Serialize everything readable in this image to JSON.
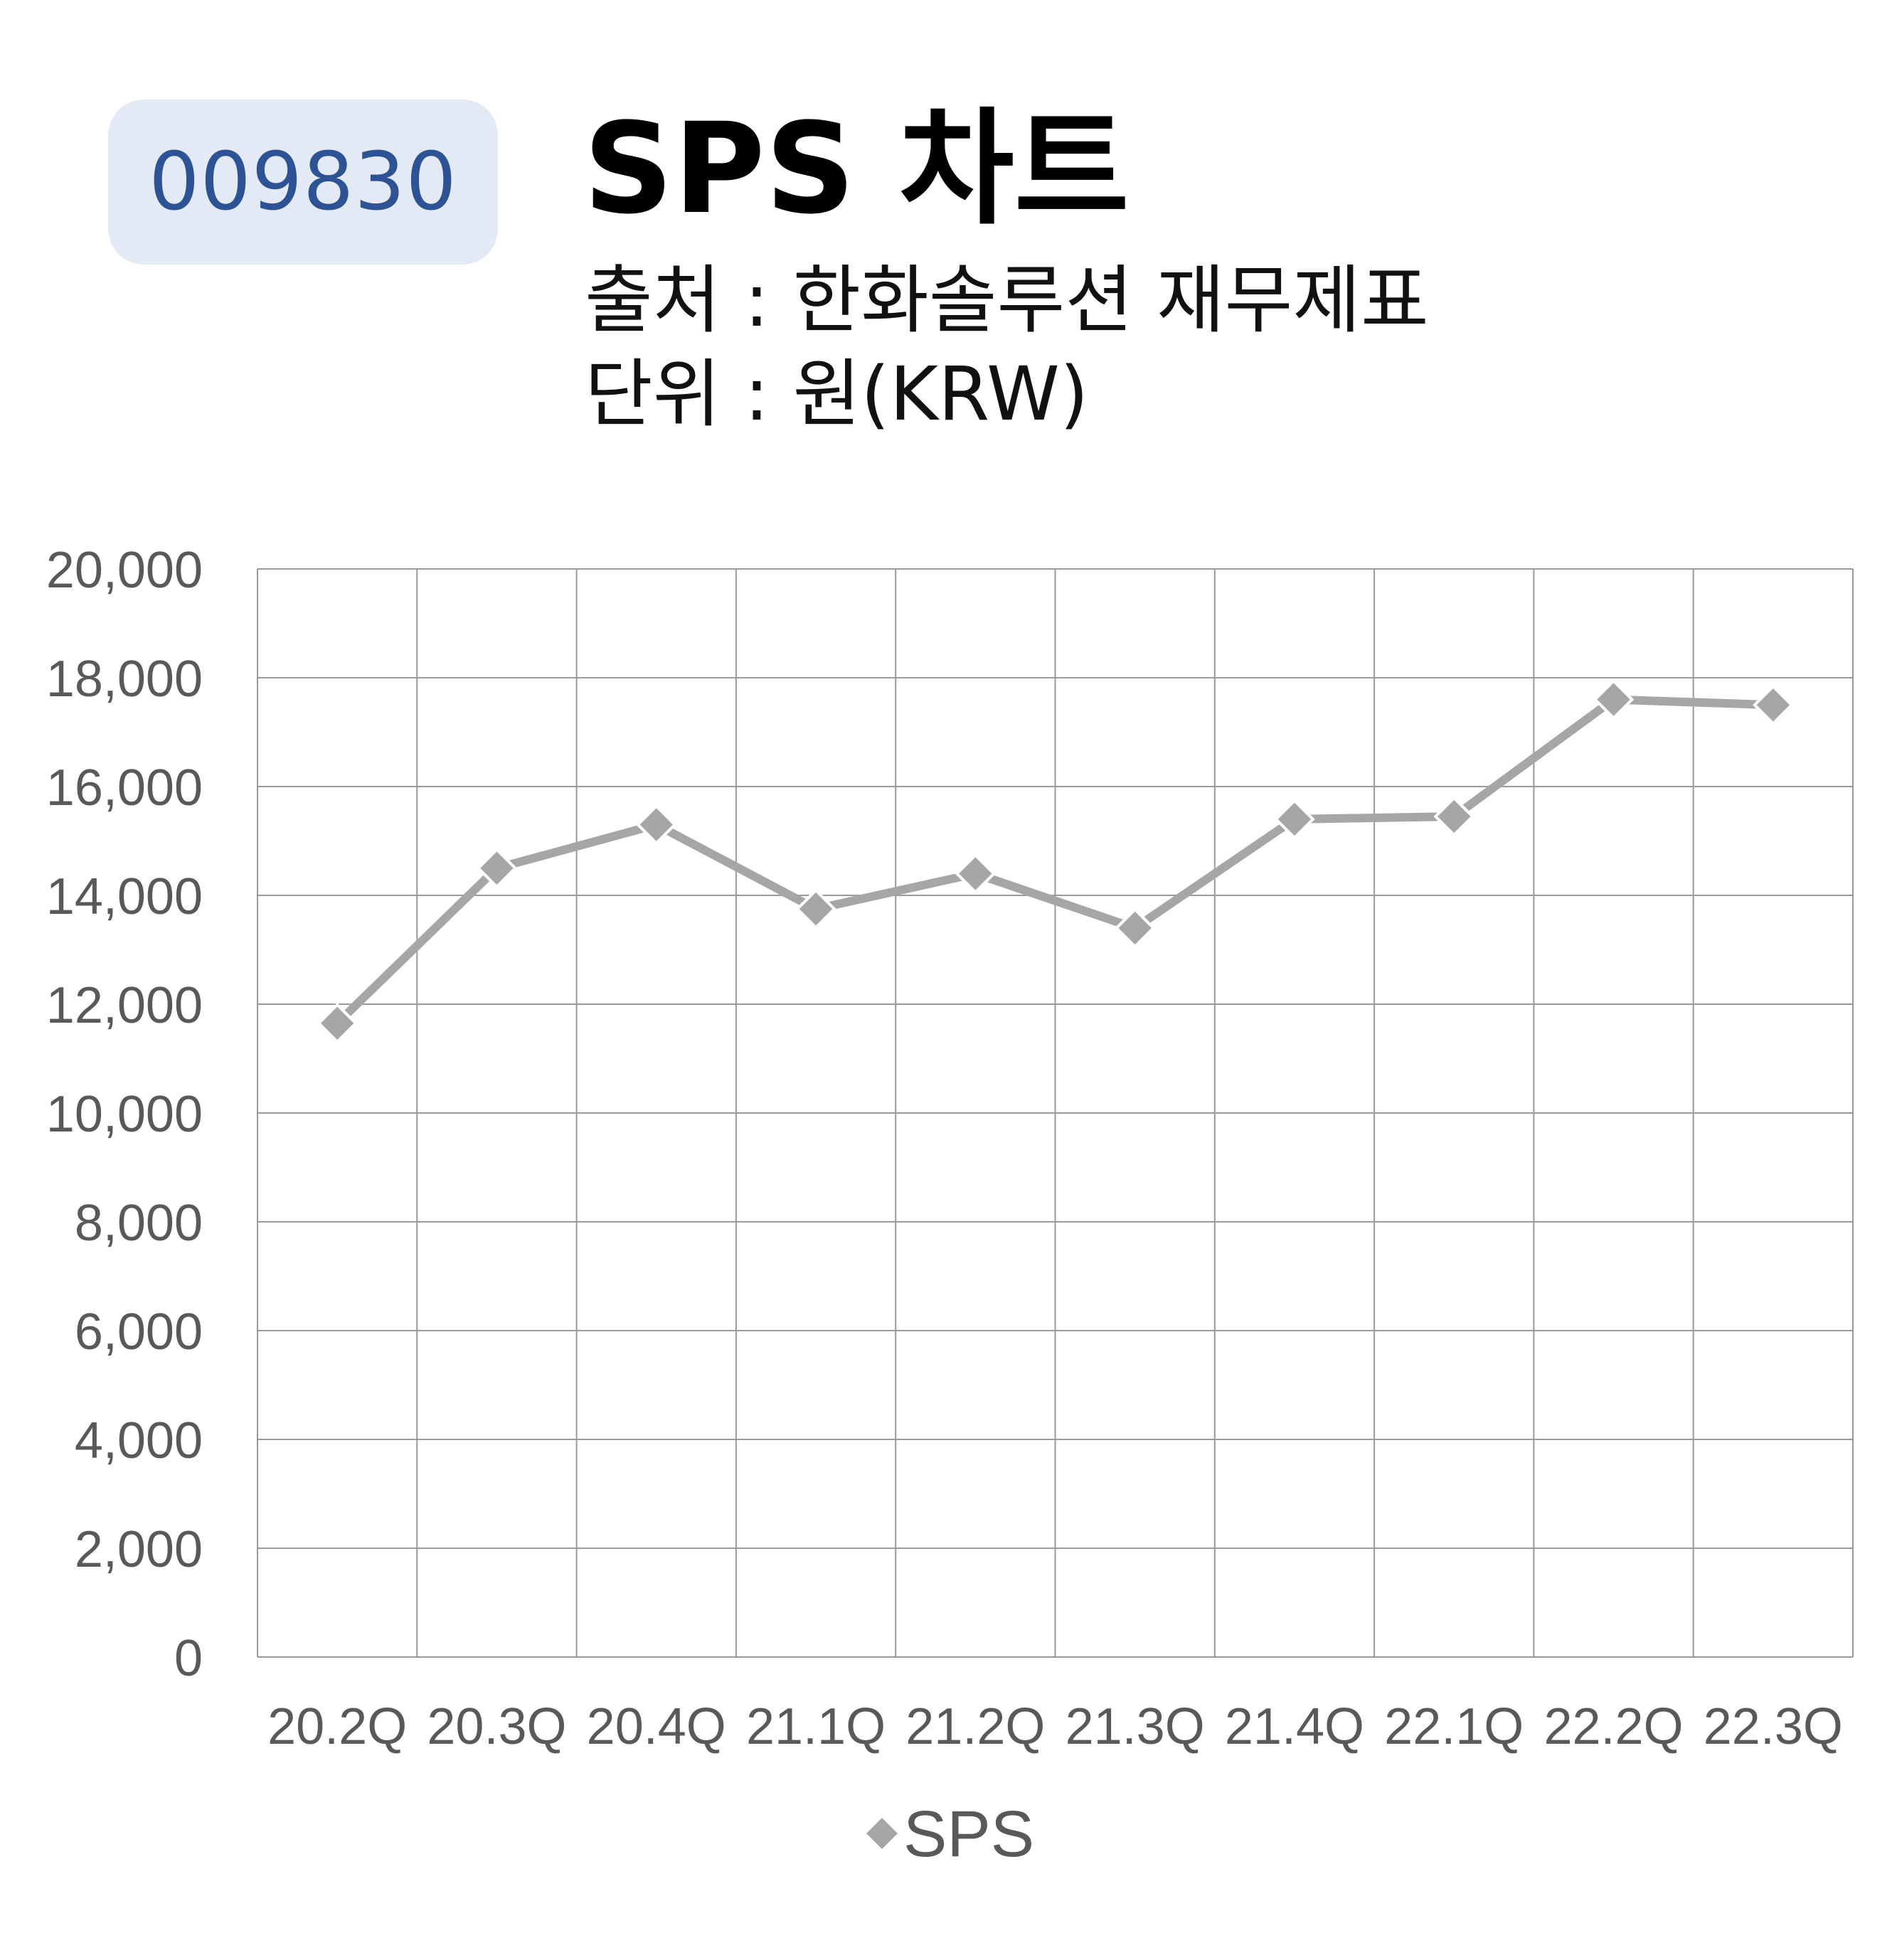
{
  "header": {
    "stock_code": "009830",
    "title": "SPS 차트",
    "source": "출처 : 한화솔루션 재무제표",
    "unit": "단위 : 원(KRW)"
  },
  "colors": {
    "badge_bg": "#e4eaf5",
    "badge_text": "#2e5394",
    "series_line": "#a6a6a6",
    "grid": "#999999",
    "tick_text": "#595959"
  },
  "chart_data": {
    "type": "line",
    "categories": [
      "20.2Q",
      "20.3Q",
      "20.4Q",
      "21.1Q",
      "21.2Q",
      "21.3Q",
      "21.4Q",
      "22.1Q",
      "22.2Q",
      "22.3Q"
    ],
    "series": [
      {
        "name": "SPS",
        "values": [
          11650,
          14500,
          15300,
          13750,
          14400,
          13400,
          15400,
          15450,
          17600,
          17500
        ]
      }
    ],
    "ylim": [
      0,
      20000
    ],
    "yticks": [
      "0",
      "2,000",
      "4,000",
      "6,000",
      "8,000",
      "10,000",
      "12,000",
      "14,000",
      "16,000",
      "18,000",
      "20,000"
    ],
    "grid": true,
    "legend": "bottom",
    "marker": "diamond"
  }
}
